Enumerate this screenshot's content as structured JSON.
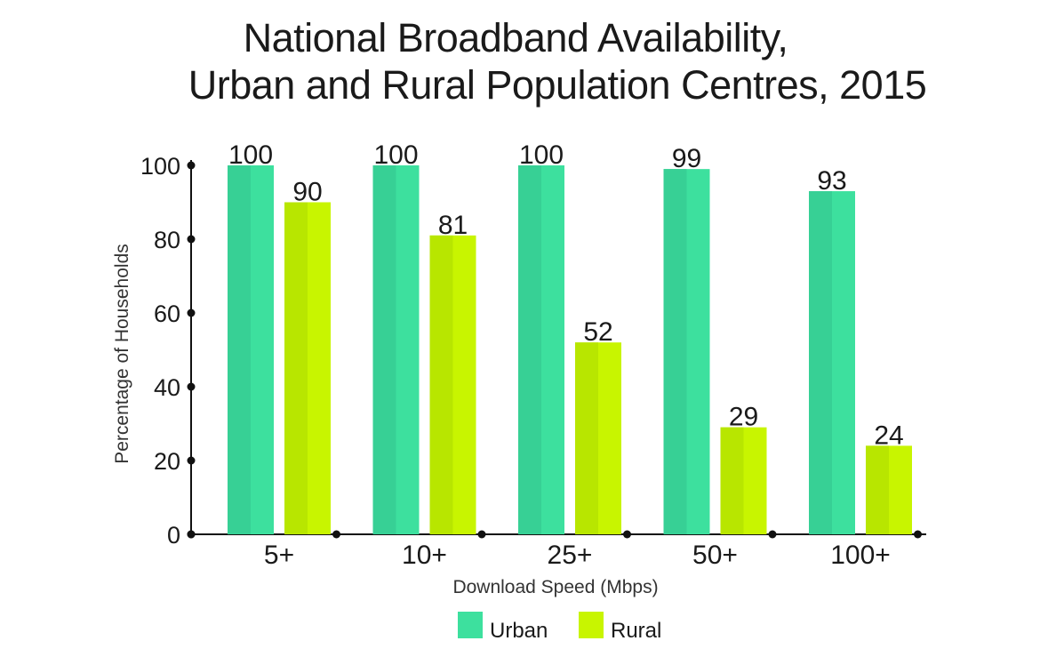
{
  "chart_data": {
    "type": "bar",
    "title_line1": "National Broadband Availability,",
    "title_line2": "Urban and Rural Population Centres, 2015",
    "xlabel": "Download Speed (Mbps)",
    "ylabel": "Percentage of Households",
    "categories": [
      "5+",
      "10+",
      "25+",
      "50+",
      "100+"
    ],
    "ylim": [
      0,
      100
    ],
    "yticks": [
      0,
      20,
      40,
      60,
      80,
      100
    ],
    "series": [
      {
        "name": "Urban",
        "color": "#3de09e",
        "shade": "#37d095",
        "values": [
          100,
          100,
          100,
          99,
          93
        ]
      },
      {
        "name": "Rural",
        "color": "#c8f500",
        "shade": "#b8e600",
        "values": [
          90,
          81,
          52,
          29,
          24
        ]
      }
    ],
    "legend": [
      "Urban",
      "Rural"
    ]
  }
}
